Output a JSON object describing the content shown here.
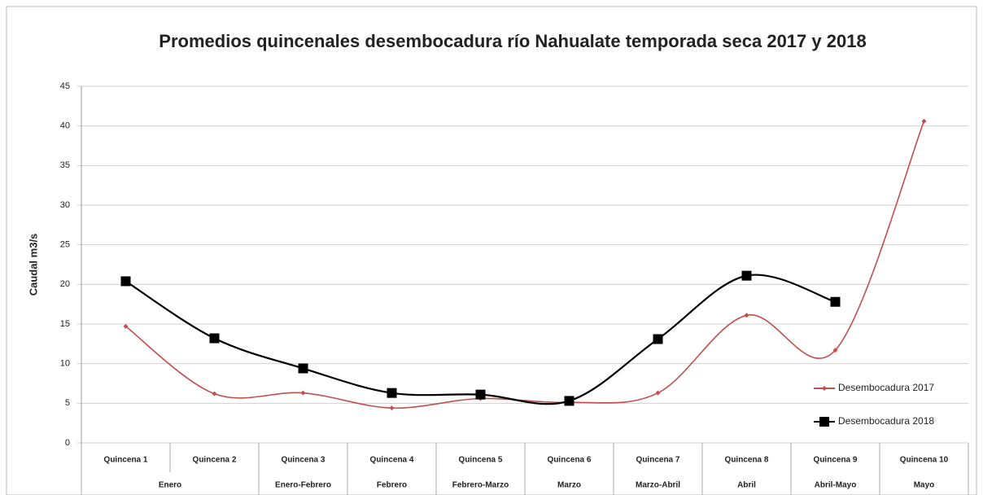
{
  "chart_data": {
    "type": "line",
    "title": "Promedios quincenales desembocadura río Nahualate temporada seca 2017 y 2018",
    "y_label": "Caudal m3/s",
    "categories": [
      "Quincena 1",
      "Quincena 2",
      "Quincena 3",
      "Quincena 4",
      "Quincena 5",
      "Quincena 6",
      "Quincena 7",
      "Quincena 8",
      "Quincena 9",
      "Quincena 10"
    ],
    "category_groups": [
      "Enero",
      null,
      "Enero-Febrero",
      "Febrero",
      "Febrero-Marzo",
      "Marzo",
      "Marzo-Abril",
      "Abril",
      "Abril-Mayo",
      "Mayo"
    ],
    "series": [
      {
        "name": "Desembocadura 2017",
        "color": "#c0504d",
        "marker": "diamond",
        "values": [
          14.7,
          6.2,
          6.3,
          4.4,
          5.6,
          5.1,
          6.3,
          16.1,
          11.7,
          40.6
        ]
      },
      {
        "name": "Desembocadura 2018",
        "color": "#000000",
        "marker": "square",
        "values": [
          20.4,
          13.2,
          9.4,
          6.3,
          6.1,
          5.3,
          13.1,
          21.1,
          17.8,
          null
        ]
      }
    ],
    "ylim": [
      0,
      45
    ],
    "yticks": [
      0,
      5,
      10,
      15,
      20,
      25,
      30,
      35,
      40,
      45
    ],
    "grid": true,
    "smooth": true,
    "legend": "right"
  }
}
